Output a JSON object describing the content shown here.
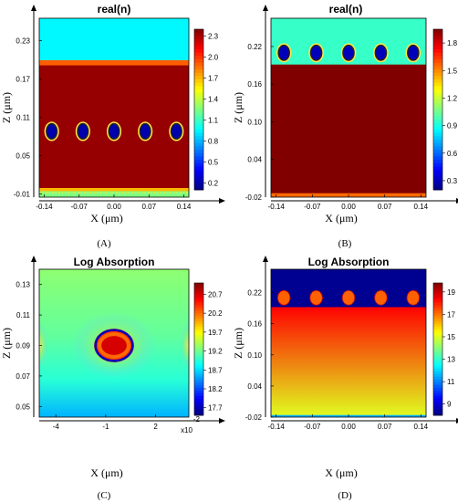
{
  "chart_data": [
    {
      "panel": "(A)",
      "type": "heatmap",
      "title": "real(n)",
      "xlabel": "X (μm)",
      "ylabel": "Z (μm)",
      "xlim": [
        -0.15,
        0.15
      ],
      "ylim": [
        -0.015,
        0.265
      ],
      "xticks": [
        "-0.14",
        "-0.07",
        "0.00",
        "0.07",
        "0.14"
      ],
      "xtick_values": [
        -0.14,
        -0.07,
        0.0,
        0.07,
        0.14
      ],
      "yticks": [
        "-0.01",
        "0.05",
        "0.11",
        "0.17",
        "0.23"
      ],
      "ytick_values": [
        -0.01,
        0.05,
        0.11,
        0.17,
        0.23
      ],
      "colorbar": {
        "ticks": [
          "0.2",
          "0.5",
          "0.8",
          "1.1",
          "1.4",
          "1.7",
          "2.0",
          "2.3"
        ],
        "tick_values": [
          0.2,
          0.5,
          0.8,
          1.1,
          1.4,
          1.7,
          2.0,
          2.3
        ],
        "range": [
          0.1,
          2.4
        ]
      },
      "layers": [
        {
          "z0": -0.015,
          "z1": -0.005,
          "value": 1.25
        },
        {
          "z0": -0.005,
          "z1": 0.0,
          "value": 1.7
        },
        {
          "z0": 0.0,
          "z1": 0.192,
          "value": 2.35
        },
        {
          "z0": 0.192,
          "z1": 0.2,
          "value": 1.9
        },
        {
          "z0": 0.2,
          "z1": 0.265,
          "value": 0.95
        }
      ],
      "particles": {
        "x": [
          -0.125,
          -0.0625,
          0.0,
          0.0625,
          0.125
        ],
        "z": 0.088,
        "rx": 0.012,
        "rz": 0.013,
        "value": 0.2,
        "rim": 1.1
      }
    },
    {
      "panel": "(B)",
      "type": "heatmap",
      "title": "real(n)",
      "xlabel": "X (μm)",
      "ylabel": "Z (μm)",
      "xlim": [
        -0.15,
        0.15
      ],
      "ylim": [
        -0.02,
        0.265
      ],
      "xticks": [
        "-0.14",
        "-0.07",
        "0.00",
        "0.07",
        "0.14"
      ],
      "xtick_values": [
        -0.14,
        -0.07,
        0.0,
        0.07,
        0.14
      ],
      "yticks": [
        "-0.02",
        "0.04",
        "0.10",
        "0.16",
        "0.22"
      ],
      "ytick_values": [
        -0.02,
        0.04,
        0.1,
        0.16,
        0.22
      ],
      "colorbar": {
        "ticks": [
          "0.3",
          "0.6",
          "0.9",
          "1.2",
          "1.5",
          "1.8"
        ],
        "tick_values": [
          0.3,
          0.6,
          0.9,
          1.2,
          1.5,
          1.8
        ],
        "range": [
          0.2,
          1.95
        ]
      },
      "layers": [
        {
          "z0": -0.02,
          "z1": -0.013,
          "value": 1.55
        },
        {
          "z0": -0.013,
          "z1": 0.192,
          "value": 1.95
        },
        {
          "z0": 0.192,
          "z1": 0.265,
          "value": 0.95
        }
      ],
      "particles": {
        "x": [
          -0.125,
          -0.0625,
          0.0,
          0.0625,
          0.125
        ],
        "z": 0.21,
        "rx": 0.012,
        "rz": 0.013,
        "value": 0.3,
        "rim": 1.2
      }
    },
    {
      "panel": "(C)",
      "type": "heatmap",
      "title": "Log Absorption",
      "xlabel": "X (μm)",
      "ylabel": "Z (μm)",
      "xlim": [
        -5,
        4
      ],
      "ylim": [
        0.043,
        0.14
      ],
      "x_multiplier": "x10",
      "x_multiplier_exp": "-2",
      "xticks": [
        "-4",
        "-1",
        "2"
      ],
      "xtick_values": [
        -4,
        -1,
        2
      ],
      "yticks": [
        "0.05",
        "0.07",
        "0.09",
        "0.11",
        "0.13"
      ],
      "ytick_values": [
        0.05,
        0.07,
        0.09,
        0.11,
        0.13
      ],
      "colorbar": {
        "ticks": [
          "17.7",
          "18.2",
          "18.7",
          "19.2",
          "19.7",
          "20.2",
          "20.7"
        ],
        "tick_values": [
          17.7,
          18.2,
          18.7,
          19.2,
          19.7,
          20.2,
          20.7
        ],
        "range": [
          17.5,
          21.0
        ]
      },
      "particle": {
        "x": -0.5,
        "z": 0.09,
        "rx": 1.2,
        "rz": 0.011
      }
    },
    {
      "panel": "(D)",
      "type": "heatmap",
      "title": "Log Absorption",
      "xlabel": "X (μm)",
      "ylabel": "Z (μm)",
      "xlim": [
        -0.15,
        0.15
      ],
      "ylim": [
        -0.02,
        0.265
      ],
      "xticks": [
        "-0.14",
        "-0.07",
        "0.00",
        "0.07",
        "0.14"
      ],
      "xtick_values": [
        -0.14,
        -0.07,
        0.0,
        0.07,
        0.14
      ],
      "yticks": [
        "-0.02",
        "0.04",
        "0.10",
        "0.16",
        "0.22"
      ],
      "ytick_values": [
        -0.02,
        0.04,
        0.1,
        0.16,
        0.22
      ],
      "colorbar": {
        "ticks": [
          "9",
          "11",
          "13",
          "15",
          "17",
          "19"
        ],
        "tick_values": [
          9,
          11,
          13,
          15,
          17,
          19
        ],
        "range": [
          8,
          19.8
        ]
      },
      "layers_note": "top region low, lower region gradient",
      "top_value": 8.2,
      "gradient": {
        "z_top": 0.192,
        "z_bottom": -0.02,
        "value_top": 18.3,
        "value_bottom": 15.0
      },
      "particles": {
        "x": [
          -0.125,
          -0.0625,
          0.0,
          0.0625,
          0.125
        ],
        "z": 0.21,
        "rx": 0.012,
        "rz": 0.014,
        "value": 18.6
      }
    }
  ],
  "captions": [
    "(A)",
    "(B)",
    "(C)",
    "(D)"
  ]
}
